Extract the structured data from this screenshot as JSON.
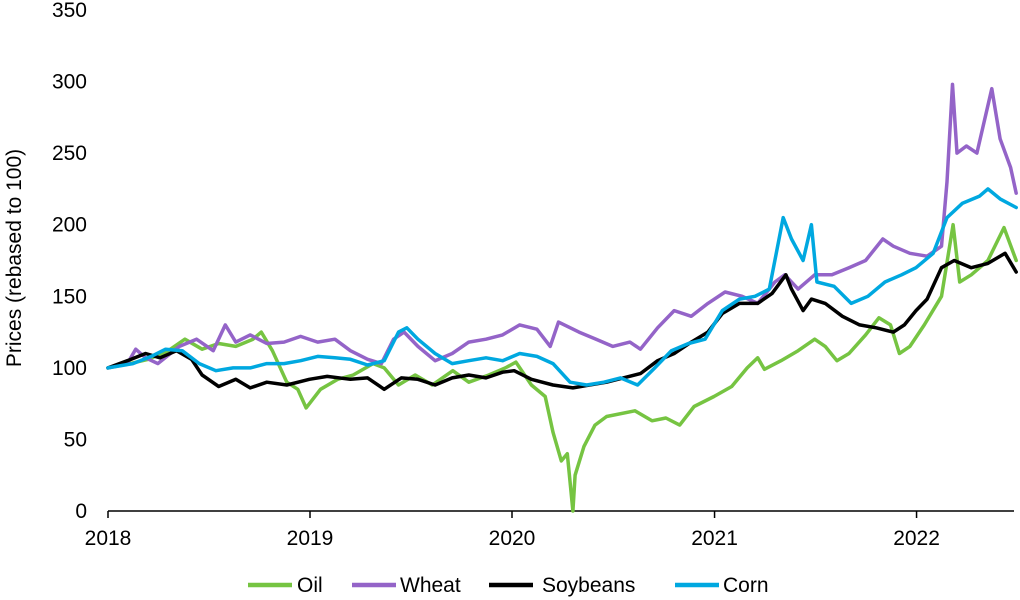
{
  "chart_data": {
    "type": "line",
    "xlabel": "",
    "ylabel": "Prices (rebased to 100)",
    "xlim": [
      "2018-01-01",
      "2022-06-30"
    ],
    "ylim": [
      0,
      350
    ],
    "xticks": [
      "2018",
      "2019",
      "2020",
      "2021",
      "2022"
    ],
    "yticks": [
      0,
      50,
      100,
      150,
      200,
      250,
      300,
      350
    ],
    "grid": false,
    "legend": "bottom",
    "series": [
      {
        "name": "Oil",
        "color": "#76c442",
        "points": [
          [
            "2018-01-01",
            100
          ],
          [
            "2018-02-10",
            103
          ],
          [
            "2018-03-15",
            106
          ],
          [
            "2018-04-20",
            112
          ],
          [
            "2018-05-20",
            120
          ],
          [
            "2018-06-20",
            113
          ],
          [
            "2018-07-20",
            117
          ],
          [
            "2018-08-20",
            115
          ],
          [
            "2018-09-20",
            120
          ],
          [
            "2018-10-05",
            125
          ],
          [
            "2018-10-25",
            112
          ],
          [
            "2018-11-20",
            90
          ],
          [
            "2018-12-10",
            85
          ],
          [
            "2018-12-25",
            72
          ],
          [
            "2019-01-20",
            85
          ],
          [
            "2019-02-20",
            92
          ],
          [
            "2019-03-20",
            95
          ],
          [
            "2019-04-25",
            103
          ],
          [
            "2019-05-15",
            100
          ],
          [
            "2019-06-10",
            88
          ],
          [
            "2019-07-10",
            95
          ],
          [
            "2019-08-10",
            88
          ],
          [
            "2019-09-16",
            98
          ],
          [
            "2019-10-15",
            90
          ],
          [
            "2019-11-20",
            95
          ],
          [
            "2019-12-20",
            100
          ],
          [
            "2020-01-08",
            104
          ],
          [
            "2020-02-05",
            88
          ],
          [
            "2020-03-01",
            80
          ],
          [
            "2020-03-15",
            55
          ],
          [
            "2020-03-30",
            35
          ],
          [
            "2020-04-10",
            40
          ],
          [
            "2020-04-20",
            0
          ],
          [
            "2020-04-24",
            25
          ],
          [
            "2020-05-10",
            45
          ],
          [
            "2020-05-30",
            60
          ],
          [
            "2020-06-20",
            66
          ],
          [
            "2020-08-10",
            70
          ],
          [
            "2020-09-10",
            63
          ],
          [
            "2020-10-05",
            65
          ],
          [
            "2020-10-30",
            60
          ],
          [
            "2020-11-25",
            73
          ],
          [
            "2020-12-31",
            80
          ],
          [
            "2021-02-01",
            87
          ],
          [
            "2021-03-01",
            100
          ],
          [
            "2021-03-20",
            107
          ],
          [
            "2021-04-01",
            99
          ],
          [
            "2021-05-01",
            105
          ],
          [
            "2021-06-01",
            112
          ],
          [
            "2021-07-01",
            120
          ],
          [
            "2021-07-20",
            115
          ],
          [
            "2021-08-10",
            105
          ],
          [
            "2021-09-01",
            110
          ],
          [
            "2021-10-01",
            123
          ],
          [
            "2021-10-25",
            135
          ],
          [
            "2021-11-15",
            130
          ],
          [
            "2021-12-01",
            110
          ],
          [
            "2021-12-20",
            115
          ],
          [
            "2022-01-15",
            130
          ],
          [
            "2022-02-15",
            150
          ],
          [
            "2022-03-08",
            200
          ],
          [
            "2022-03-20",
            160
          ],
          [
            "2022-04-10",
            165
          ],
          [
            "2022-05-10",
            175
          ],
          [
            "2022-06-08",
            198
          ],
          [
            "2022-06-30",
            175
          ]
        ]
      },
      {
        "name": "Wheat",
        "color": "#9464c8",
        "points": [
          [
            "2018-01-01",
            100
          ],
          [
            "2018-02-05",
            103
          ],
          [
            "2018-02-20",
            113
          ],
          [
            "2018-03-10",
            107
          ],
          [
            "2018-04-01",
            103
          ],
          [
            "2018-05-10",
            115
          ],
          [
            "2018-06-10",
            120
          ],
          [
            "2018-07-10",
            112
          ],
          [
            "2018-08-01",
            130
          ],
          [
            "2018-08-20",
            118
          ],
          [
            "2018-09-15",
            123
          ],
          [
            "2018-10-15",
            117
          ],
          [
            "2018-11-15",
            118
          ],
          [
            "2018-12-15",
            122
          ],
          [
            "2019-01-15",
            118
          ],
          [
            "2019-02-15",
            120
          ],
          [
            "2019-03-15",
            112
          ],
          [
            "2019-04-15",
            106
          ],
          [
            "2019-05-10",
            103
          ],
          [
            "2019-06-01",
            120
          ],
          [
            "2019-06-20",
            125
          ],
          [
            "2019-07-15",
            115
          ],
          [
            "2019-08-15",
            105
          ],
          [
            "2019-09-15",
            110
          ],
          [
            "2019-10-15",
            118
          ],
          [
            "2019-11-15",
            120
          ],
          [
            "2019-12-15",
            123
          ],
          [
            "2020-01-15",
            130
          ],
          [
            "2020-02-15",
            127
          ],
          [
            "2020-03-10",
            115
          ],
          [
            "2020-03-25",
            132
          ],
          [
            "2020-05-01",
            125
          ],
          [
            "2020-06-01",
            120
          ],
          [
            "2020-07-01",
            115
          ],
          [
            "2020-08-01",
            118
          ],
          [
            "2020-08-20",
            113
          ],
          [
            "2020-09-20",
            128
          ],
          [
            "2020-10-20",
            140
          ],
          [
            "2020-11-20",
            136
          ],
          [
            "2020-12-20",
            145
          ],
          [
            "2021-01-20",
            153
          ],
          [
            "2021-02-20",
            150
          ],
          [
            "2021-03-20",
            145
          ],
          [
            "2021-04-20",
            160
          ],
          [
            "2021-05-08",
            165
          ],
          [
            "2021-06-01",
            155
          ],
          [
            "2021-07-01",
            165
          ],
          [
            "2021-08-01",
            165
          ],
          [
            "2021-09-01",
            170
          ],
          [
            "2021-10-01",
            175
          ],
          [
            "2021-11-01",
            190
          ],
          [
            "2021-11-20",
            185
          ],
          [
            "2021-12-20",
            180
          ],
          [
            "2022-01-20",
            178
          ],
          [
            "2022-02-15",
            185
          ],
          [
            "2022-02-25",
            230
          ],
          [
            "2022-03-07",
            298
          ],
          [
            "2022-03-15",
            250
          ],
          [
            "2022-04-01",
            255
          ],
          [
            "2022-04-20",
            250
          ],
          [
            "2022-05-17",
            295
          ],
          [
            "2022-06-01",
            260
          ],
          [
            "2022-06-20",
            240
          ],
          [
            "2022-06-30",
            222
          ]
        ]
      },
      {
        "name": "Soybeans",
        "color": "#000000",
        "points": [
          [
            "2018-01-01",
            100
          ],
          [
            "2018-02-05",
            105
          ],
          [
            "2018-03-10",
            110
          ],
          [
            "2018-04-05",
            107
          ],
          [
            "2018-05-05",
            112
          ],
          [
            "2018-06-01",
            106
          ],
          [
            "2018-06-20",
            95
          ],
          [
            "2018-07-20",
            87
          ],
          [
            "2018-08-20",
            92
          ],
          [
            "2018-09-15",
            86
          ],
          [
            "2018-10-15",
            90
          ],
          [
            "2018-11-20",
            88
          ],
          [
            "2018-12-31",
            92
          ],
          [
            "2019-02-01",
            94
          ],
          [
            "2019-03-15",
            92
          ],
          [
            "2019-04-15",
            93
          ],
          [
            "2019-05-15",
            85
          ],
          [
            "2019-06-15",
            93
          ],
          [
            "2019-07-15",
            92
          ],
          [
            "2019-08-15",
            88
          ],
          [
            "2019-09-15",
            93
          ],
          [
            "2019-10-15",
            95
          ],
          [
            "2019-11-15",
            93
          ],
          [
            "2019-12-15",
            97
          ],
          [
            "2020-01-05",
            98
          ],
          [
            "2020-02-05",
            92
          ],
          [
            "2020-03-15",
            88
          ],
          [
            "2020-04-20",
            86
          ],
          [
            "2020-05-20",
            88
          ],
          [
            "2020-06-20",
            90
          ],
          [
            "2020-07-20",
            93
          ],
          [
            "2020-08-20",
            96
          ],
          [
            "2020-09-20",
            105
          ],
          [
            "2020-10-20",
            110
          ],
          [
            "2020-11-20",
            118
          ],
          [
            "2020-12-20",
            125
          ],
          [
            "2021-01-15",
            138
          ],
          [
            "2021-02-15",
            145
          ],
          [
            "2021-03-20",
            145
          ],
          [
            "2021-04-15",
            152
          ],
          [
            "2021-05-10",
            165
          ],
          [
            "2021-05-20",
            155
          ],
          [
            "2021-06-10",
            140
          ],
          [
            "2021-06-25",
            148
          ],
          [
            "2021-07-20",
            145
          ],
          [
            "2021-08-20",
            136
          ],
          [
            "2021-09-20",
            130
          ],
          [
            "2021-10-20",
            128
          ],
          [
            "2021-11-20",
            125
          ],
          [
            "2021-12-10",
            130
          ],
          [
            "2021-12-31",
            140
          ],
          [
            "2022-01-20",
            148
          ],
          [
            "2022-02-15",
            170
          ],
          [
            "2022-03-10",
            175
          ],
          [
            "2022-04-10",
            170
          ],
          [
            "2022-05-10",
            173
          ],
          [
            "2022-06-10",
            180
          ],
          [
            "2022-06-30",
            167
          ]
        ]
      },
      {
        "name": "Corn",
        "color": "#00a8e0",
        "points": [
          [
            "2018-01-01",
            100
          ],
          [
            "2018-02-15",
            103
          ],
          [
            "2018-03-20",
            108
          ],
          [
            "2018-04-15",
            113
          ],
          [
            "2018-05-15",
            112
          ],
          [
            "2018-06-15",
            103
          ],
          [
            "2018-07-15",
            98
          ],
          [
            "2018-08-15",
            100
          ],
          [
            "2018-09-15",
            100
          ],
          [
            "2018-10-15",
            103
          ],
          [
            "2018-11-15",
            103
          ],
          [
            "2018-12-15",
            105
          ],
          [
            "2019-01-15",
            108
          ],
          [
            "2019-02-15",
            107
          ],
          [
            "2019-03-15",
            106
          ],
          [
            "2019-04-15",
            102
          ],
          [
            "2019-05-15",
            105
          ],
          [
            "2019-06-10",
            125
          ],
          [
            "2019-06-25",
            128
          ],
          [
            "2019-07-15",
            120
          ],
          [
            "2019-08-15",
            110
          ],
          [
            "2019-09-15",
            103
          ],
          [
            "2019-10-15",
            105
          ],
          [
            "2019-11-15",
            107
          ],
          [
            "2019-12-15",
            105
          ],
          [
            "2020-01-15",
            110
          ],
          [
            "2020-02-15",
            108
          ],
          [
            "2020-03-15",
            103
          ],
          [
            "2020-04-15",
            90
          ],
          [
            "2020-05-15",
            88
          ],
          [
            "2020-06-15",
            90
          ],
          [
            "2020-07-15",
            93
          ],
          [
            "2020-08-15",
            88
          ],
          [
            "2020-09-15",
            100
          ],
          [
            "2020-10-15",
            112
          ],
          [
            "2020-11-15",
            117
          ],
          [
            "2020-12-15",
            120
          ],
          [
            "2021-01-15",
            140
          ],
          [
            "2021-02-15",
            148
          ],
          [
            "2021-03-15",
            150
          ],
          [
            "2021-04-10",
            155
          ],
          [
            "2021-05-05",
            205
          ],
          [
            "2021-05-20",
            190
          ],
          [
            "2021-06-10",
            175
          ],
          [
            "2021-06-25",
            200
          ],
          [
            "2021-07-05",
            160
          ],
          [
            "2021-08-05",
            157
          ],
          [
            "2021-09-05",
            145
          ],
          [
            "2021-10-05",
            150
          ],
          [
            "2021-11-05",
            160
          ],
          [
            "2021-12-05",
            165
          ],
          [
            "2021-12-31",
            170
          ],
          [
            "2022-01-31",
            180
          ],
          [
            "2022-02-25",
            205
          ],
          [
            "2022-03-25",
            215
          ],
          [
            "2022-04-25",
            220
          ],
          [
            "2022-05-10",
            225
          ],
          [
            "2022-06-01",
            218
          ],
          [
            "2022-06-30",
            212
          ]
        ]
      }
    ]
  }
}
